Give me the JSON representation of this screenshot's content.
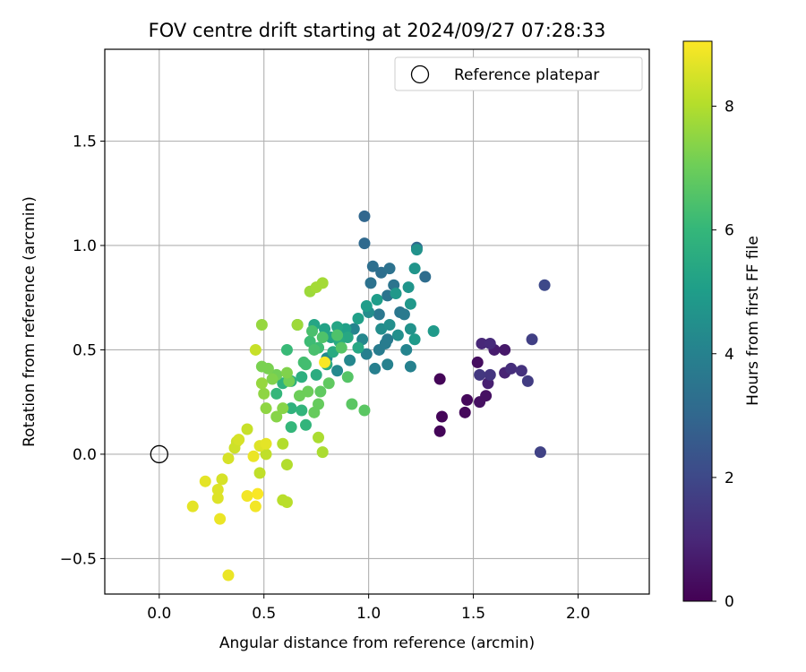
{
  "chart_data": {
    "type": "scatter",
    "title": "FOV centre drift starting at 2024/09/27 07:28:33",
    "xlabel": "Angular distance from reference (arcmin)",
    "ylabel": "Rotation from reference (arcmin)",
    "xlim": [
      -0.26,
      2.34
    ],
    "ylim": [
      -0.67,
      1.94
    ],
    "xticks": [
      0.0,
      0.5,
      1.0,
      1.5,
      2.0
    ],
    "xtick_labels": [
      "0.0",
      "0.5",
      "1.0",
      "1.5",
      "2.0"
    ],
    "yticks": [
      -0.5,
      0.0,
      0.5,
      1.0,
      1.5
    ],
    "ytick_labels": [
      "−0.5",
      "0.0",
      "0.5",
      "1.0",
      "1.5"
    ],
    "grid": true,
    "legend": {
      "placement": "top-right",
      "entries": [
        "Reference platepar"
      ]
    },
    "reference_point": {
      "x": 0.0,
      "y": 0.0
    },
    "colorbar": {
      "label": "Hours from first FF file",
      "range": [
        0,
        9.05
      ],
      "ticks": [
        0,
        2,
        4,
        6,
        8
      ],
      "tick_labels": [
        "0",
        "2",
        "4",
        "6",
        "8"
      ],
      "colormap": "viridis",
      "stops": [
        "#440154",
        "#482878",
        "#3e4989",
        "#31688e",
        "#26828e",
        "#1f9e89",
        "#35b779",
        "#6ece58",
        "#b5de2b",
        "#fde725"
      ]
    },
    "points": [
      [
        1.34,
        0.36,
        0.1
      ],
      [
        1.35,
        0.18,
        0.1
      ],
      [
        1.34,
        0.11,
        0.1
      ],
      [
        1.47,
        0.26,
        0.2
      ],
      [
        1.46,
        0.2,
        0.2
      ],
      [
        1.52,
        0.44,
        0.3
      ],
      [
        1.53,
        0.25,
        0.4
      ],
      [
        1.56,
        0.28,
        0.4
      ],
      [
        1.65,
        0.5,
        0.6
      ],
      [
        1.6,
        0.5,
        0.7
      ],
      [
        1.57,
        0.34,
        0.8
      ],
      [
        1.65,
        0.39,
        0.9
      ],
      [
        1.54,
        0.53,
        1.0
      ],
      [
        1.58,
        0.53,
        1.1
      ],
      [
        1.68,
        0.41,
        1.2
      ],
      [
        1.73,
        0.4,
        1.3
      ],
      [
        1.58,
        0.38,
        1.4
      ],
      [
        1.53,
        0.38,
        1.5
      ],
      [
        1.76,
        0.35,
        1.6
      ],
      [
        1.78,
        0.55,
        1.7
      ],
      [
        1.82,
        0.01,
        1.8
      ],
      [
        1.84,
        0.81,
        2.0
      ],
      [
        0.98,
        1.14,
        3.0
      ],
      [
        0.98,
        1.01,
        3.1
      ],
      [
        1.27,
        0.85,
        3.2
      ],
      [
        1.23,
        0.99,
        3.1
      ],
      [
        1.02,
        0.9,
        3.3
      ],
      [
        1.06,
        0.87,
        3.3
      ],
      [
        1.1,
        0.89,
        3.4
      ],
      [
        1.01,
        0.82,
        3.4
      ],
      [
        1.09,
        0.76,
        3.5
      ],
      [
        1.12,
        0.81,
        3.5
      ],
      [
        1.05,
        0.67,
        3.6
      ],
      [
        1.15,
        0.68,
        3.6
      ],
      [
        1.17,
        0.67,
        3.7
      ],
      [
        1.09,
        0.55,
        3.7
      ],
      [
        1.05,
        0.5,
        3.8
      ],
      [
        1.08,
        0.53,
        3.8
      ],
      [
        0.99,
        0.48,
        3.9
      ],
      [
        1.03,
        0.41,
        3.9
      ],
      [
        1.09,
        0.43,
        4.0
      ],
      [
        1.2,
        0.42,
        4.0
      ],
      [
        1.18,
        0.5,
        4.1
      ],
      [
        0.93,
        0.6,
        4.1
      ],
      [
        0.97,
        0.55,
        4.2
      ],
      [
        0.91,
        0.45,
        4.2
      ],
      [
        0.85,
        0.4,
        4.3
      ],
      [
        0.8,
        0.46,
        4.3
      ],
      [
        1.06,
        0.6,
        4.4
      ],
      [
        1.0,
        0.68,
        4.4
      ],
      [
        1.1,
        0.62,
        4.5
      ],
      [
        1.14,
        0.57,
        4.5
      ],
      [
        1.2,
        0.6,
        4.6
      ],
      [
        1.23,
        0.98,
        4.6
      ],
      [
        1.22,
        0.89,
        4.7
      ],
      [
        1.19,
        0.8,
        4.7
      ],
      [
        1.13,
        0.77,
        4.8
      ],
      [
        1.2,
        0.72,
        4.8
      ],
      [
        1.22,
        0.55,
        4.9
      ],
      [
        1.31,
        0.59,
        4.9
      ],
      [
        1.04,
        0.74,
        5.0
      ],
      [
        0.99,
        0.71,
        5.0
      ],
      [
        0.95,
        0.65,
        5.1
      ],
      [
        0.89,
        0.6,
        5.1
      ],
      [
        0.82,
        0.56,
        5.2
      ],
      [
        0.79,
        0.6,
        5.2
      ],
      [
        0.74,
        0.62,
        5.3
      ],
      [
        0.85,
        0.61,
        5.3
      ],
      [
        0.9,
        0.56,
        5.4
      ],
      [
        0.95,
        0.51,
        5.4
      ],
      [
        0.86,
        0.54,
        5.5
      ],
      [
        0.83,
        0.49,
        5.5
      ],
      [
        0.8,
        0.43,
        5.6
      ],
      [
        0.75,
        0.38,
        5.6
      ],
      [
        0.68,
        0.37,
        5.7
      ],
      [
        0.63,
        0.35,
        5.7
      ],
      [
        0.59,
        0.34,
        5.8
      ],
      [
        0.63,
        0.22,
        5.8
      ],
      [
        0.68,
        0.21,
        5.9
      ],
      [
        0.7,
        0.14,
        5.9
      ],
      [
        0.63,
        0.13,
        6.0
      ],
      [
        0.56,
        0.29,
        6.0
      ],
      [
        0.61,
        0.5,
        6.1
      ],
      [
        0.66,
        0.62,
        6.1
      ],
      [
        0.72,
        0.54,
        6.2
      ],
      [
        0.76,
        0.51,
        6.2
      ],
      [
        0.69,
        0.44,
        6.3
      ],
      [
        0.7,
        0.43,
        6.3
      ],
      [
        0.74,
        0.5,
        6.4
      ],
      [
        0.73,
        0.59,
        6.4
      ],
      [
        0.78,
        0.56,
        6.5
      ],
      [
        0.85,
        0.57,
        6.5
      ],
      [
        0.87,
        0.51,
        6.6
      ],
      [
        0.9,
        0.37,
        6.6
      ],
      [
        0.92,
        0.24,
        6.7
      ],
      [
        0.98,
        0.21,
        6.7
      ],
      [
        0.81,
        0.34,
        6.8
      ],
      [
        0.77,
        0.3,
        6.8
      ],
      [
        0.76,
        0.24,
        6.9
      ],
      [
        0.74,
        0.2,
        6.9
      ],
      [
        0.71,
        0.3,
        7.0
      ],
      [
        0.67,
        0.28,
        7.0
      ],
      [
        0.62,
        0.35,
        7.1
      ],
      [
        0.56,
        0.38,
        7.1
      ],
      [
        0.52,
        0.41,
        7.2
      ],
      [
        0.49,
        0.42,
        7.2
      ],
      [
        0.54,
        0.36,
        7.3
      ],
      [
        0.61,
        0.39,
        7.3
      ],
      [
        0.59,
        0.22,
        7.4
      ],
      [
        0.56,
        0.18,
        7.4
      ],
      [
        0.51,
        0.22,
        7.5
      ],
      [
        0.5,
        0.29,
        7.5
      ],
      [
        0.49,
        0.34,
        7.6
      ],
      [
        0.49,
        0.62,
        7.6
      ],
      [
        0.66,
        0.62,
        7.7
      ],
      [
        0.72,
        0.78,
        7.7
      ],
      [
        0.75,
        0.8,
        7.8
      ],
      [
        0.78,
        0.82,
        7.8
      ],
      [
        0.76,
        0.08,
        7.9
      ],
      [
        0.78,
        0.01,
        7.9
      ],
      [
        0.59,
        0.05,
        8.0
      ],
      [
        0.61,
        -0.05,
        8.0
      ],
      [
        0.59,
        -0.22,
        8.1
      ],
      [
        0.61,
        -0.23,
        8.1
      ],
      [
        0.51,
        0.0,
        8.2
      ],
      [
        0.48,
        -0.09,
        8.2
      ],
      [
        0.46,
        0.5,
        8.3
      ],
      [
        0.42,
        0.12,
        8.3
      ],
      [
        0.37,
        0.06,
        8.4
      ],
      [
        0.36,
        0.03,
        8.4
      ],
      [
        0.33,
        -0.02,
        8.5
      ],
      [
        0.3,
        -0.12,
        8.5
      ],
      [
        0.28,
        -0.17,
        8.6
      ],
      [
        0.28,
        -0.21,
        8.6
      ],
      [
        0.22,
        -0.13,
        8.7
      ],
      [
        0.16,
        -0.25,
        8.7
      ],
      [
        0.29,
        -0.31,
        8.8
      ],
      [
        0.33,
        -0.58,
        8.8
      ],
      [
        0.42,
        -0.2,
        8.9
      ],
      [
        0.46,
        -0.25,
        8.9
      ],
      [
        0.47,
        -0.19,
        9.0
      ],
      [
        0.79,
        0.44,
        9.0
      ],
      [
        0.48,
        0.04,
        8.6
      ],
      [
        0.51,
        0.05,
        8.7
      ],
      [
        0.45,
        -0.01,
        8.8
      ],
      [
        0.38,
        0.07,
        8.5
      ]
    ]
  }
}
